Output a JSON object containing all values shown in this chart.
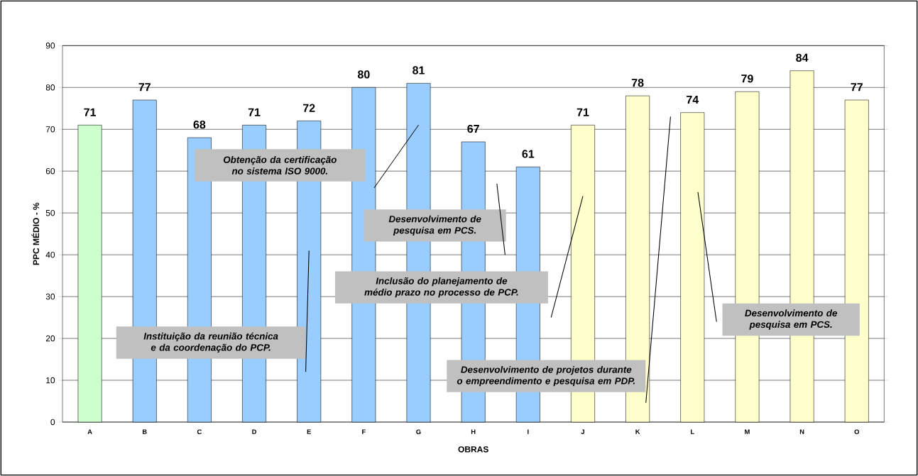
{
  "chart_data": {
    "type": "bar",
    "xlabel": "OBRAS",
    "ylabel": "PPC MÉDIO - %",
    "categories": [
      "A",
      "B",
      "C",
      "D",
      "E",
      "F",
      "G",
      "H",
      "I",
      "J",
      "K",
      "L",
      "M",
      "N",
      "O"
    ],
    "values": [
      71,
      77,
      68,
      71,
      72,
      80,
      81,
      67,
      61,
      71,
      78,
      74,
      79,
      84,
      77
    ],
    "colors": [
      "#ccffcc",
      "#99ccff",
      "#99ccff",
      "#99ccff",
      "#99ccff",
      "#99ccff",
      "#99ccff",
      "#99ccff",
      "#99ccff",
      "#ffffcc",
      "#ffffcc",
      "#ffffcc",
      "#ffffcc",
      "#ffffcc",
      "#ffffcc"
    ],
    "data_labels": true,
    "ylim": [
      0,
      90
    ],
    "yticks": [
      0,
      10,
      20,
      30,
      40,
      50,
      60,
      70,
      80,
      90
    ],
    "grid": "y",
    "annotations": [
      "Instituição da reunião técnica e da coordenação do PCP.",
      "Obtenção da certificação no sistema ISO 9000.",
      "Desenvolvimento de pesquisa em PCS.",
      "Inclusão do planejamento de médio prazo no processo de PCP.",
      "Desenvolvimento de projetos durante o empreendimento e pesquisa em PDP.",
      "Desenvolvimento de pesquisa em PCS."
    ]
  }
}
